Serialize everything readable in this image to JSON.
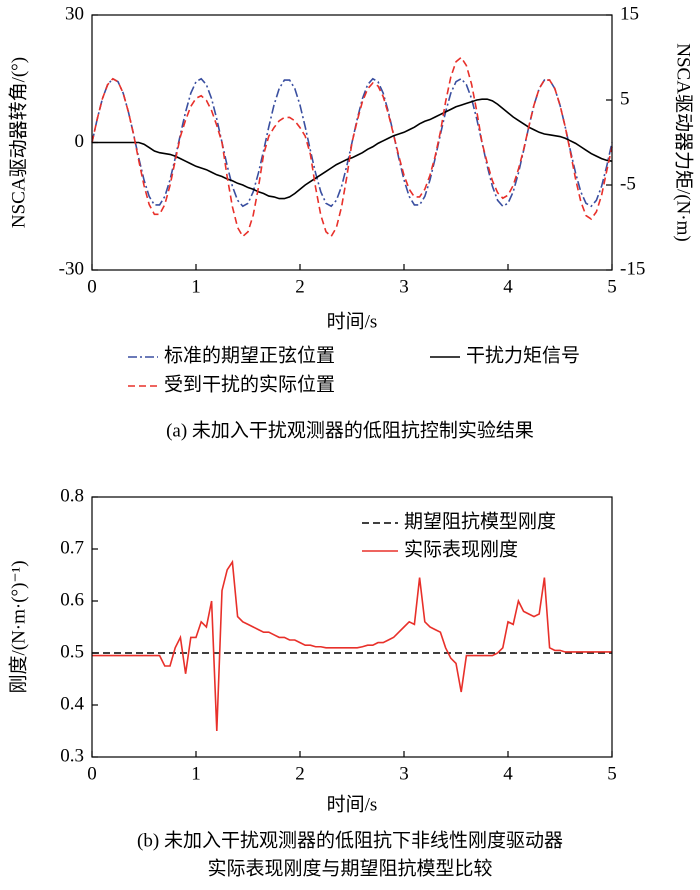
{
  "chart_data": [
    {
      "type": "line",
      "xlabel": "时间/s",
      "ylabel": "NSCA驱动器转角/(°)",
      "y2label": "NSCA驱动器力矩/(N·m)",
      "caption": [
        "(a) 未加入干扰观测器的低阻抗控制实验结果"
      ],
      "xlim": [
        0,
        5
      ],
      "xticks": [
        0,
        1,
        2,
        3,
        4,
        5
      ],
      "ylim": [
        -30,
        30
      ],
      "yticks": [
        -30,
        0,
        30
      ],
      "y2lim": [
        -15,
        15
      ],
      "y2ticks": [
        -15,
        -5,
        5,
        15
      ],
      "legend": "below",
      "x": [
        0,
        0.05,
        0.1,
        0.15,
        0.2,
        0.25,
        0.3,
        0.35,
        0.4,
        0.45,
        0.5,
        0.55,
        0.6,
        0.65,
        0.7,
        0.75,
        0.8,
        0.85,
        0.9,
        0.95,
        1,
        1.05,
        1.1,
        1.15,
        1.2,
        1.25,
        1.3,
        1.35,
        1.4,
        1.45,
        1.5,
        1.55,
        1.6,
        1.65,
        1.7,
        1.75,
        1.8,
        1.85,
        1.9,
        1.95,
        2,
        2.05,
        2.1,
        2.15,
        2.2,
        2.25,
        2.3,
        2.35,
        2.4,
        2.45,
        2.5,
        2.55,
        2.6,
        2.65,
        2.7,
        2.75,
        2.8,
        2.85,
        2.9,
        2.95,
        3,
        3.05,
        3.1,
        3.15,
        3.2,
        3.25,
        3.3,
        3.35,
        3.4,
        3.45,
        3.5,
        3.55,
        3.6,
        3.65,
        3.7,
        3.75,
        3.8,
        3.85,
        3.9,
        3.95,
        4,
        4.05,
        4.1,
        4.15,
        4.2,
        4.25,
        4.3,
        4.35,
        4.4,
        4.45,
        4.5,
        4.55,
        4.6,
        4.65,
        4.7,
        4.75,
        4.8,
        4.85,
        4.9,
        4.95,
        5
      ],
      "series": [
        {
          "name": "标准的期望正弦位置",
          "color": "#3a4fa0",
          "linestyle": "dashdot",
          "axis": "y",
          "values": [
            0,
            5.5,
            10.3,
            13.6,
            15.0,
            14.3,
            11.6,
            7.2,
            1.9,
            -3.7,
            -8.8,
            -12.7,
            -14.7,
            -14.7,
            -12.7,
            -8.8,
            -3.7,
            1.9,
            7.2,
            11.6,
            14.3,
            15.0,
            13.6,
            10.3,
            5.5,
            0,
            -5.5,
            -10.3,
            -13.6,
            -15.0,
            -14.3,
            -11.6,
            -7.2,
            -1.9,
            3.7,
            8.8,
            12.7,
            14.7,
            14.7,
            12.7,
            8.8,
            3.7,
            -1.9,
            -7.2,
            -11.6,
            -14.3,
            -15.0,
            -13.6,
            -10.3,
            -5.5,
            0,
            5.5,
            10.3,
            13.6,
            15.0,
            14.3,
            11.6,
            7.2,
            1.9,
            -3.7,
            -8.8,
            -12.7,
            -14.7,
            -14.7,
            -12.7,
            -8.8,
            -3.7,
            1.9,
            7.2,
            11.6,
            14.3,
            15.0,
            13.6,
            10.3,
            5.5,
            0,
            -5.5,
            -10.3,
            -13.6,
            -15.0,
            -14.3,
            -11.6,
            -7.2,
            -1.9,
            3.7,
            8.8,
            12.7,
            14.7,
            14.7,
            12.7,
            8.8,
            3.7,
            -1.9,
            -7.2,
            -11.6,
            -14.3,
            -15.0,
            -13.6,
            -10.3,
            -5.5,
            0
          ]
        },
        {
          "name": "干扰力矩信号",
          "color": "#000000",
          "linestyle": "solid",
          "axis": "y2",
          "values": [
            0,
            0,
            0,
            0,
            0,
            0,
            0,
            0,
            0,
            0,
            -0.2,
            -0.6,
            -1.0,
            -1.2,
            -1.3,
            -1.4,
            -1.6,
            -1.9,
            -2.2,
            -2.5,
            -2.8,
            -3.0,
            -3.2,
            -3.5,
            -3.8,
            -4.0,
            -4.3,
            -4.5,
            -4.8,
            -5.0,
            -5.3,
            -5.5,
            -5.8,
            -6.0,
            -6.3,
            -6.4,
            -6.6,
            -6.6,
            -6.4,
            -6.0,
            -5.5,
            -5.0,
            -4.6,
            -4.2,
            -3.8,
            -3.4,
            -3.0,
            -2.6,
            -2.3,
            -2.0,
            -1.8,
            -1.5,
            -1.2,
            -0.8,
            -0.5,
            -0.1,
            0.2,
            0.5,
            0.8,
            1.0,
            1.2,
            1.5,
            1.8,
            2.2,
            2.5,
            2.7,
            3.0,
            3.3,
            3.6,
            3.9,
            4.2,
            4.4,
            4.6,
            4.8,
            5.0,
            5.1,
            5.1,
            4.9,
            4.5,
            4.0,
            3.5,
            3.0,
            2.6,
            2.2,
            1.8,
            1.5,
            1.2,
            1.0,
            0.9,
            0.8,
            0.7,
            0.5,
            0.2,
            -0.1,
            -0.5,
            -0.9,
            -1.3,
            -1.6,
            -1.9,
            -2.1,
            -2.2
          ]
        },
        {
          "name": "受到干扰的实际位置",
          "color": "#e8302a",
          "linestyle": "dashed",
          "axis": "y",
          "values": [
            0,
            5.5,
            10.3,
            13.6,
            15.0,
            14.3,
            11.6,
            7.2,
            1.9,
            -4.3,
            -10.1,
            -14.6,
            -16.9,
            -16.9,
            -14.6,
            -10.1,
            -4.3,
            1.4,
            5.3,
            8.5,
            10.4,
            11.0,
            9.9,
            7.5,
            4.0,
            0,
            -8.1,
            -15.1,
            -20.0,
            -22.1,
            -21.0,
            -17.1,
            -10.6,
            -2.8,
            1.5,
            3.5,
            5.1,
            5.9,
            5.9,
            5.1,
            3.5,
            1.5,
            -2.8,
            -10.6,
            -17.1,
            -21.0,
            -22.1,
            -20.0,
            -15.1,
            -8.1,
            0,
            5.1,
            9.6,
            12.6,
            14.0,
            13.3,
            10.8,
            6.7,
            1.8,
            -3.2,
            -7.7,
            -11.0,
            -12.8,
            -12.8,
            -11.0,
            -7.7,
            -3.2,
            2.5,
            9.6,
            15.4,
            19.0,
            20.0,
            18.1,
            13.7,
            7.3,
            0,
            -4.8,
            -9.0,
            -11.8,
            -13.1,
            -12.4,
            -10.1,
            -6.3,
            -1.7,
            3.7,
            8.8,
            12.7,
            14.7,
            14.7,
            12.7,
            8.8,
            3.7,
            -2.3,
            -8.6,
            -13.9,
            -17.2,
            -18.0,
            -16.3,
            -12.4,
            -6.6,
            -1.0
          ]
        }
      ]
    },
    {
      "type": "line",
      "xlabel": "时间/s",
      "ylabel": "刚度/(N·m·(°)⁻¹)",
      "caption": [
        "(b) 未加入干扰观测器的低阻抗下非线性刚度驱动器",
        "实际表现刚度与期望阻抗模型比较"
      ],
      "xlim": [
        0,
        5
      ],
      "xticks": [
        0,
        1,
        2,
        3,
        4,
        5
      ],
      "ylim": [
        0.3,
        0.8
      ],
      "yticks": [
        0.3,
        0.4,
        0.5,
        0.6,
        0.7,
        0.8
      ],
      "legend": "upper right",
      "x": [
        0,
        0.05,
        0.1,
        0.15,
        0.2,
        0.25,
        0.3,
        0.35,
        0.4,
        0.45,
        0.5,
        0.55,
        0.6,
        0.65,
        0.7,
        0.75,
        0.8,
        0.85,
        0.9,
        0.95,
        1,
        1.05,
        1.1,
        1.15,
        1.2,
        1.25,
        1.3,
        1.35,
        1.4,
        1.45,
        1.5,
        1.55,
        1.6,
        1.65,
        1.7,
        1.75,
        1.8,
        1.85,
        1.9,
        1.95,
        2,
        2.05,
        2.1,
        2.15,
        2.2,
        2.25,
        2.3,
        2.35,
        2.4,
        2.45,
        2.5,
        2.55,
        2.6,
        2.65,
        2.7,
        2.75,
        2.8,
        2.85,
        2.9,
        2.95,
        3,
        3.05,
        3.1,
        3.15,
        3.2,
        3.25,
        3.3,
        3.35,
        3.4,
        3.45,
        3.5,
        3.55,
        3.6,
        3.65,
        3.7,
        3.75,
        3.8,
        3.85,
        3.9,
        3.95,
        4,
        4.05,
        4.1,
        4.15,
        4.2,
        4.25,
        4.3,
        4.35,
        4.4,
        4.45,
        4.5,
        4.55,
        4.6,
        4.65,
        4.7,
        4.75,
        4.8,
        4.85,
        4.9,
        4.95,
        5
      ],
      "series": [
        {
          "name": "期望阻抗模型刚度",
          "color": "#000000",
          "linestyle": "dashed",
          "x": [
            0,
            5
          ],
          "values": [
            0.5,
            0.5
          ]
        },
        {
          "name": "实际表现刚度",
          "color": "#e8302a",
          "linestyle": "solid",
          "values": [
            0.495,
            0.495,
            0.495,
            0.495,
            0.495,
            0.495,
            0.495,
            0.495,
            0.495,
            0.495,
            0.495,
            0.495,
            0.495,
            0.495,
            0.475,
            0.475,
            0.51,
            0.53,
            0.46,
            0.53,
            0.53,
            0.56,
            0.55,
            0.6,
            0.35,
            0.62,
            0.66,
            0.675,
            0.57,
            0.56,
            0.555,
            0.55,
            0.545,
            0.54,
            0.54,
            0.535,
            0.53,
            0.53,
            0.525,
            0.525,
            0.52,
            0.515,
            0.515,
            0.512,
            0.512,
            0.51,
            0.51,
            0.51,
            0.51,
            0.51,
            0.51,
            0.51,
            0.512,
            0.515,
            0.515,
            0.52,
            0.52,
            0.525,
            0.53,
            0.54,
            0.55,
            0.56,
            0.555,
            0.645,
            0.56,
            0.55,
            0.545,
            0.54,
            0.51,
            0.49,
            0.48,
            0.425,
            0.495,
            0.495,
            0.495,
            0.495,
            0.495,
            0.495,
            0.5,
            0.51,
            0.56,
            0.555,
            0.6,
            0.58,
            0.575,
            0.57,
            0.575,
            0.645,
            0.51,
            0.505,
            0.505,
            0.502,
            0.502,
            0.502,
            0.502,
            0.502,
            0.502,
            0.502,
            0.502,
            0.502,
            0.502
          ]
        }
      ]
    }
  ]
}
